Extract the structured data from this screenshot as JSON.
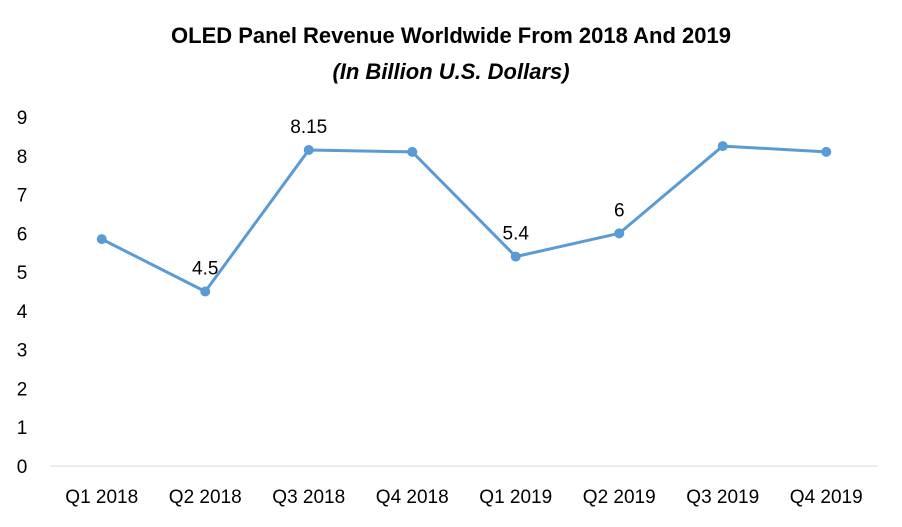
{
  "chart_data": {
    "type": "line",
    "title": "OLED Panel Revenue Worldwide From 2018 And 2019",
    "subtitle": "(In Billion U.S. Dollars)",
    "categories": [
      "Q1 2018",
      "Q2 2018",
      "Q3 2018",
      "Q4 2018",
      "Q1 2019",
      "Q2 2019",
      "Q3 2019",
      "Q4 2019"
    ],
    "series": [
      {
        "values": [
          5.85,
          4.5,
          8.15,
          8.1,
          5.4,
          6,
          8.25,
          8.1
        ],
        "color": "#5B9BD5"
      }
    ],
    "data_labels": [
      "",
      "4.5",
      "8.15",
      "",
      "5.4",
      "6",
      "",
      ""
    ],
    "yticks": [
      "0",
      "1",
      "2",
      "3",
      "4",
      "5",
      "6",
      "7",
      "8",
      "9"
    ],
    "ylim": [
      0,
      9
    ],
    "grid": false,
    "legend": "none",
    "xlabel": "",
    "ylabel": ""
  }
}
